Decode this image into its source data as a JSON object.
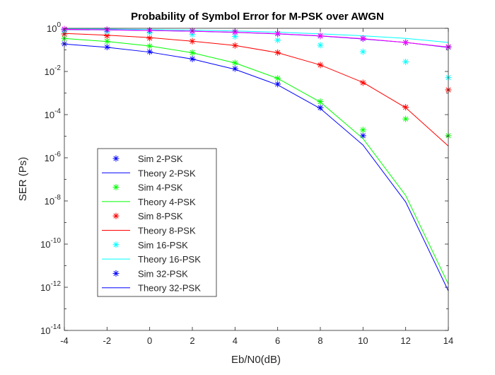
{
  "chart_data": {
    "type": "line",
    "title": "Probability of Symbol Error for M-PSK over AWGN",
    "xlabel": "Eb/N0(dB)",
    "ylabel": "SER (Ps)",
    "xlim": [
      -4,
      14
    ],
    "ylim_log10": [
      -14,
      0
    ],
    "yscale": "log",
    "grid": false,
    "legend_position": "lower-left",
    "x_ticks": [
      -4,
      -2,
      0,
      2,
      4,
      6,
      8,
      10,
      12,
      14
    ],
    "x_tick_labels": [
      "-4",
      "-2",
      "0",
      "2",
      "4",
      "6",
      "8",
      "10",
      "12",
      "14"
    ],
    "y_ticks_log10": [
      0,
      -2,
      -4,
      -6,
      -8,
      -10,
      -12,
      -14
    ],
    "y_tick_labels": [
      {
        "base": "10",
        "exp": "0"
      },
      {
        "base": "10",
        "exp": "-2"
      },
      {
        "base": "10",
        "exp": "-4"
      },
      {
        "base": "10",
        "exp": "-6"
      },
      {
        "base": "10",
        "exp": "-8"
      },
      {
        "base": "10",
        "exp": "-10"
      },
      {
        "base": "10",
        "exp": "-12"
      },
      {
        "base": "10",
        "exp": "-14"
      }
    ],
    "series": [
      {
        "name": "Sim 2-PSK",
        "kind": "markers",
        "marker": "asterisk",
        "color": "#0000ff",
        "x": [
          -4,
          -2,
          0,
          2,
          4,
          6,
          8,
          10
        ],
        "y": [
          0.19,
          0.135,
          0.082,
          0.038,
          0.0135,
          0.0026,
          0.00021,
          1.05e-05
        ]
      },
      {
        "name": "Theory 2-PSK",
        "kind": "line",
        "color": "#0000ff",
        "x": [
          -4,
          -2,
          0,
          2,
          4,
          6,
          8,
          10,
          12,
          14
        ],
        "y": [
          0.186,
          0.131,
          0.0786,
          0.0375,
          0.0125,
          0.00239,
          0.000191,
          3.9e-06,
          9e-09,
          6.8e-13
        ]
      },
      {
        "name": "Sim 4-PSK",
        "kind": "markers",
        "marker": "asterisk",
        "color": "#00ff00",
        "x": [
          -4,
          -2,
          0,
          2,
          4,
          6,
          8,
          10,
          12,
          14
        ],
        "y": [
          0.34,
          0.25,
          0.15,
          0.074,
          0.025,
          0.0048,
          0.0004,
          1.95e-05,
          6.3e-05,
          1.05e-05
        ]
      },
      {
        "name": "Theory 4-PSK",
        "kind": "line",
        "color": "#00ff00",
        "x": [
          -4,
          -2,
          0,
          2,
          4,
          6,
          8,
          10,
          12,
          14
        ],
        "y": [
          0.337,
          0.244,
          0.152,
          0.0735,
          0.0248,
          0.00477,
          0.00038,
          7.8e-06,
          1.8e-08,
          1.4e-12
        ]
      },
      {
        "name": "Sim 8-PSK",
        "kind": "markers",
        "marker": "asterisk",
        "color": "#ff0000",
        "x": [
          -4,
          -2,
          0,
          2,
          4,
          6,
          8,
          10,
          12,
          14
        ],
        "y": [
          0.55,
          0.45,
          0.35,
          0.25,
          0.16,
          0.075,
          0.02,
          0.003,
          0.00022,
          0.0014
        ]
      },
      {
        "name": "Theory 8-PSK",
        "kind": "line",
        "color": "#ff0000",
        "x": [
          -4,
          -2,
          0,
          2,
          4,
          6,
          8,
          10,
          12,
          14
        ],
        "y": [
          0.58,
          0.48,
          0.37,
          0.252,
          0.16,
          0.074,
          0.02,
          0.0031,
          0.00021,
          3.5e-06
        ]
      },
      {
        "name": "Sim 16-PSK",
        "kind": "markers",
        "marker": "asterisk",
        "color": "#00ffff",
        "x": [
          -4,
          -2,
          0,
          2,
          4,
          6,
          8,
          10,
          12,
          14
        ],
        "y": [
          0.78,
          0.72,
          0.63,
          0.53,
          0.42,
          0.28,
          0.165,
          0.082,
          0.028,
          0.0052
        ]
      },
      {
        "name": "Theory 16-PSK",
        "kind": "line",
        "color": "#00ffff",
        "x": [
          -4,
          -2,
          0,
          2,
          4,
          6,
          8,
          10,
          12,
          14
        ],
        "y": [
          0.95,
          0.93,
          0.88,
          0.82,
          0.75,
          0.66,
          0.55,
          0.45,
          0.34,
          0.22
        ]
      },
      {
        "name": "Sim 32-PSK",
        "kind": "markers",
        "marker": "asterisk",
        "color": "#0000ff",
        "x": [
          -4,
          -2,
          0,
          2,
          4,
          6,
          8,
          10,
          12,
          14
        ],
        "y": [
          0.9,
          0.85,
          0.8,
          0.75,
          0.68,
          0.56,
          0.44,
          0.33,
          0.22,
          0.135
        ]
      },
      {
        "name": "Theory 32-PSK",
        "kind": "line",
        "color": "#0000ff",
        "x": [
          -4,
          -2,
          0,
          2,
          4,
          6,
          8,
          10,
          12,
          14
        ],
        "y": [
          0.88,
          0.84,
          0.79,
          0.73,
          0.65,
          0.55,
          0.44,
          0.32,
          0.22,
          0.13
        ]
      },
      {
        "name": "",
        "kind": "line",
        "color": "#ff00ff",
        "x": [
          -4,
          -2,
          0,
          2,
          4,
          6,
          8,
          10,
          12,
          14
        ],
        "y": [
          0.9,
          0.86,
          0.8,
          0.74,
          0.66,
          0.56,
          0.45,
          0.33,
          0.22,
          0.135
        ]
      },
      {
        "name": "",
        "kind": "markers",
        "marker": "asterisk",
        "color": "#ff00ff",
        "x": [
          -4,
          -2,
          0,
          2,
          4,
          6,
          8,
          10,
          12,
          14
        ],
        "y": [
          0.92,
          0.87,
          0.81,
          0.75,
          0.67,
          0.57,
          0.45,
          0.34,
          0.22,
          0.14
        ]
      }
    ],
    "legend_entries": [
      "Sim 2-PSK",
      "Theory 2-PSK",
      "Sim 4-PSK",
      "Theory 4-PSK",
      "Sim 8-PSK",
      "Theory 8-PSK",
      "Sim 16-PSK",
      "Theory 16-PSK",
      "Sim 32-PSK",
      "Theory 32-PSK"
    ]
  }
}
